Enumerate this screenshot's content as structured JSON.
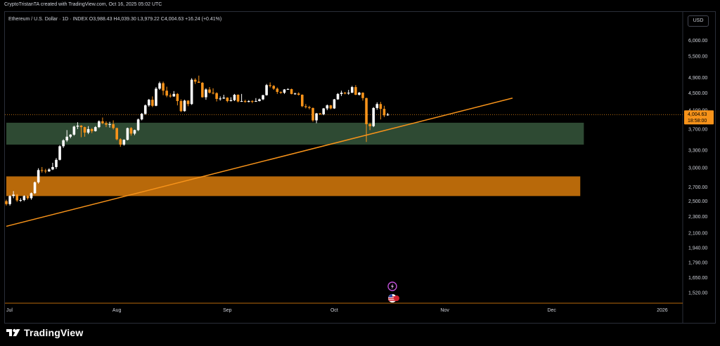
{
  "header": {
    "credit": "CryptoTristanTA created with TradingView.com, Oct 16, 2025 05:02 UTC"
  },
  "legend": {
    "symbol": "Ethereum / U.S. Dollar · 1D · INDEX",
    "open": "O3,988.43",
    "high": "H4,039.30",
    "low": "L3,979.22",
    "close": "C4,004.63",
    "change": "+16.24 (+0.41%)"
  },
  "currency_label": "USD",
  "price_badge": {
    "price": "4,004.63",
    "countdown": "18:58:00"
  },
  "footer": {
    "brand": "TradingView"
  },
  "colors": {
    "up": "#ffffff",
    "down": "#f7931a",
    "support_zone": "#2e4a33",
    "lower_zone": "#b8690a",
    "trendline": "#f7931a",
    "price_line": "#f7931a"
  },
  "icons": [
    "lightning-icon",
    "us-flag-icon",
    "tradingview-logo-icon"
  ],
  "chart_data": {
    "type": "candlestick",
    "y_scale": "log",
    "ylim": [
      1440,
      7000
    ],
    "y_ticks": [
      "6,000.00",
      "5,500.00",
      "4,900.00",
      "4,500.00",
      "4,100.00",
      "3,700.00",
      "3,300.00",
      "3,000.00",
      "2,700.00",
      "2,500.00",
      "2,300.00",
      "2,100.00",
      "1,940.00",
      "1,790.00",
      "1,650.00",
      "1,520.00"
    ],
    "x_ticks": [
      "Jul",
      "Aug",
      "Sep",
      "Oct",
      "Nov",
      "Dec",
      "2026"
    ],
    "x_range": [
      "2025-07-01",
      "2026-01-05"
    ],
    "last_price": 4004.63,
    "zones": [
      {
        "name": "support",
        "from": "2025-07-01",
        "to": "2025-12-10",
        "low": 3400,
        "high": 3830
      },
      {
        "name": "lower",
        "from": "2025-07-01",
        "to": "2025-12-09",
        "low": 2570,
        "high": 2860
      }
    ],
    "trendline": {
      "from": {
        "date": "2025-07-01",
        "price": 2180
      },
      "to": {
        "date": "2025-11-20",
        "price": 4380
      }
    },
    "candles": [
      {
        "date": "2025-07-01",
        "o": 2500,
        "h": 2520,
        "l": 2440,
        "c": 2460
      },
      {
        "date": "2025-07-02",
        "o": 2460,
        "h": 2580,
        "l": 2440,
        "c": 2570
      },
      {
        "date": "2025-07-03",
        "o": 2570,
        "h": 2640,
        "l": 2540,
        "c": 2590
      },
      {
        "date": "2025-07-04",
        "o": 2590,
        "h": 2600,
        "l": 2490,
        "c": 2510
      },
      {
        "date": "2025-07-05",
        "o": 2510,
        "h": 2540,
        "l": 2490,
        "c": 2515
      },
      {
        "date": "2025-07-06",
        "o": 2515,
        "h": 2580,
        "l": 2500,
        "c": 2570
      },
      {
        "date": "2025-07-07",
        "o": 2570,
        "h": 2580,
        "l": 2520,
        "c": 2540
      },
      {
        "date": "2025-07-08",
        "o": 2540,
        "h": 2620,
        "l": 2520,
        "c": 2610
      },
      {
        "date": "2025-07-09",
        "o": 2610,
        "h": 2780,
        "l": 2600,
        "c": 2770
      },
      {
        "date": "2025-07-10",
        "o": 2770,
        "h": 2990,
        "l": 2750,
        "c": 2960
      },
      {
        "date": "2025-07-11",
        "o": 2960,
        "h": 3010,
        "l": 2920,
        "c": 2950
      },
      {
        "date": "2025-07-12",
        "o": 2950,
        "h": 2980,
        "l": 2910,
        "c": 2940
      },
      {
        "date": "2025-07-13",
        "o": 2940,
        "h": 2990,
        "l": 2930,
        "c": 2970
      },
      {
        "date": "2025-07-14",
        "o": 2970,
        "h": 3080,
        "l": 2960,
        "c": 3010
      },
      {
        "date": "2025-07-15",
        "o": 3010,
        "h": 3160,
        "l": 2980,
        "c": 3130
      },
      {
        "date": "2025-07-16",
        "o": 3130,
        "h": 3390,
        "l": 3120,
        "c": 3370
      },
      {
        "date": "2025-07-17",
        "o": 3370,
        "h": 3500,
        "l": 3340,
        "c": 3480
      },
      {
        "date": "2025-07-18",
        "o": 3480,
        "h": 3680,
        "l": 3450,
        "c": 3550
      },
      {
        "date": "2025-07-19",
        "o": 3550,
        "h": 3600,
        "l": 3520,
        "c": 3590
      },
      {
        "date": "2025-07-20",
        "o": 3590,
        "h": 3770,
        "l": 3570,
        "c": 3750
      },
      {
        "date": "2025-07-21",
        "o": 3750,
        "h": 3840,
        "l": 3700,
        "c": 3770
      },
      {
        "date": "2025-07-22",
        "o": 3770,
        "h": 3780,
        "l": 3540,
        "c": 3740
      },
      {
        "date": "2025-07-23",
        "o": 3740,
        "h": 3750,
        "l": 3550,
        "c": 3630
      },
      {
        "date": "2025-07-24",
        "o": 3630,
        "h": 3760,
        "l": 3600,
        "c": 3700
      },
      {
        "date": "2025-07-25",
        "o": 3700,
        "h": 3720,
        "l": 3620,
        "c": 3660
      },
      {
        "date": "2025-07-26",
        "o": 3660,
        "h": 3760,
        "l": 3650,
        "c": 3740
      },
      {
        "date": "2025-07-27",
        "o": 3740,
        "h": 3880,
        "l": 3720,
        "c": 3860
      },
      {
        "date": "2025-07-28",
        "o": 3860,
        "h": 3940,
        "l": 3800,
        "c": 3820
      },
      {
        "date": "2025-07-29",
        "o": 3820,
        "h": 3860,
        "l": 3740,
        "c": 3790
      },
      {
        "date": "2025-07-30",
        "o": 3790,
        "h": 3850,
        "l": 3730,
        "c": 3800
      },
      {
        "date": "2025-07-31",
        "o": 3800,
        "h": 3880,
        "l": 3690,
        "c": 3720
      },
      {
        "date": "2025-08-01",
        "o": 3720,
        "h": 3730,
        "l": 3480,
        "c": 3500
      },
      {
        "date": "2025-08-02",
        "o": 3500,
        "h": 3520,
        "l": 3360,
        "c": 3400
      },
      {
        "date": "2025-08-03",
        "o": 3400,
        "h": 3500,
        "l": 3380,
        "c": 3490
      },
      {
        "date": "2025-08-04",
        "o": 3490,
        "h": 3730,
        "l": 3480,
        "c": 3720
      },
      {
        "date": "2025-08-05",
        "o": 3720,
        "h": 3740,
        "l": 3570,
        "c": 3610
      },
      {
        "date": "2025-08-06",
        "o": 3610,
        "h": 3690,
        "l": 3580,
        "c": 3680
      },
      {
        "date": "2025-08-07",
        "o": 3680,
        "h": 3920,
        "l": 3660,
        "c": 3900
      },
      {
        "date": "2025-08-08",
        "o": 3900,
        "h": 4040,
        "l": 3880,
        "c": 4020
      },
      {
        "date": "2025-08-09",
        "o": 4020,
        "h": 4230,
        "l": 4000,
        "c": 4210
      },
      {
        "date": "2025-08-10",
        "o": 4210,
        "h": 4360,
        "l": 4180,
        "c": 4340
      },
      {
        "date": "2025-08-11",
        "o": 4340,
        "h": 4420,
        "l": 4170,
        "c": 4200
      },
      {
        "date": "2025-08-12",
        "o": 4200,
        "h": 4650,
        "l": 4190,
        "c": 4610
      },
      {
        "date": "2025-08-13",
        "o": 4610,
        "h": 4790,
        "l": 4580,
        "c": 4750
      },
      {
        "date": "2025-08-14",
        "o": 4750,
        "h": 4790,
        "l": 4450,
        "c": 4560
      },
      {
        "date": "2025-08-15",
        "o": 4560,
        "h": 4660,
        "l": 4400,
        "c": 4440
      },
      {
        "date": "2025-08-16",
        "o": 4440,
        "h": 4490,
        "l": 4390,
        "c": 4420
      },
      {
        "date": "2025-08-17",
        "o": 4420,
        "h": 4550,
        "l": 4410,
        "c": 4480
      },
      {
        "date": "2025-08-18",
        "o": 4480,
        "h": 4500,
        "l": 4210,
        "c": 4310
      },
      {
        "date": "2025-08-19",
        "o": 4310,
        "h": 4350,
        "l": 4060,
        "c": 4080
      },
      {
        "date": "2025-08-20",
        "o": 4080,
        "h": 4340,
        "l": 4070,
        "c": 4320
      },
      {
        "date": "2025-08-21",
        "o": 4320,
        "h": 4330,
        "l": 4190,
        "c": 4240
      },
      {
        "date": "2025-08-22",
        "o": 4240,
        "h": 4880,
        "l": 4220,
        "c": 4840
      },
      {
        "date": "2025-08-23",
        "o": 4840,
        "h": 4880,
        "l": 4730,
        "c": 4790
      },
      {
        "date": "2025-08-24",
        "o": 4790,
        "h": 4950,
        "l": 4760,
        "c": 4760
      },
      {
        "date": "2025-08-25",
        "o": 4760,
        "h": 4780,
        "l": 4390,
        "c": 4400
      },
      {
        "date": "2025-08-26",
        "o": 4400,
        "h": 4620,
        "l": 4340,
        "c": 4590
      },
      {
        "date": "2025-08-27",
        "o": 4590,
        "h": 4650,
        "l": 4490,
        "c": 4510
      },
      {
        "date": "2025-08-28",
        "o": 4510,
        "h": 4620,
        "l": 4470,
        "c": 4500
      },
      {
        "date": "2025-08-29",
        "o": 4500,
        "h": 4520,
        "l": 4300,
        "c": 4360
      },
      {
        "date": "2025-08-30",
        "o": 4360,
        "h": 4420,
        "l": 4320,
        "c": 4370
      },
      {
        "date": "2025-08-31",
        "o": 4370,
        "h": 4460,
        "l": 4360,
        "c": 4390
      },
      {
        "date": "2025-09-01",
        "o": 4390,
        "h": 4400,
        "l": 4280,
        "c": 4310
      },
      {
        "date": "2025-09-02",
        "o": 4310,
        "h": 4400,
        "l": 4300,
        "c": 4330
      },
      {
        "date": "2025-09-03",
        "o": 4330,
        "h": 4480,
        "l": 4310,
        "c": 4460
      },
      {
        "date": "2025-09-04",
        "o": 4460,
        "h": 4470,
        "l": 4280,
        "c": 4300
      },
      {
        "date": "2025-09-05",
        "o": 4300,
        "h": 4480,
        "l": 4290,
        "c": 4310
      },
      {
        "date": "2025-09-06",
        "o": 4310,
        "h": 4340,
        "l": 4270,
        "c": 4290
      },
      {
        "date": "2025-09-07",
        "o": 4290,
        "h": 4330,
        "l": 4280,
        "c": 4310
      },
      {
        "date": "2025-09-08",
        "o": 4310,
        "h": 4330,
        "l": 4260,
        "c": 4300
      },
      {
        "date": "2025-09-09",
        "o": 4300,
        "h": 4380,
        "l": 4290,
        "c": 4310
      },
      {
        "date": "2025-09-10",
        "o": 4310,
        "h": 4370,
        "l": 4300,
        "c": 4350
      },
      {
        "date": "2025-09-11",
        "o": 4350,
        "h": 4460,
        "l": 4330,
        "c": 4450
      },
      {
        "date": "2025-09-12",
        "o": 4450,
        "h": 4730,
        "l": 4440,
        "c": 4700
      },
      {
        "date": "2025-09-13",
        "o": 4700,
        "h": 4770,
        "l": 4640,
        "c": 4680
      },
      {
        "date": "2025-09-14",
        "o": 4680,
        "h": 4700,
        "l": 4580,
        "c": 4610
      },
      {
        "date": "2025-09-15",
        "o": 4610,
        "h": 4640,
        "l": 4480,
        "c": 4530
      },
      {
        "date": "2025-09-16",
        "o": 4530,
        "h": 4540,
        "l": 4480,
        "c": 4510
      },
      {
        "date": "2025-09-17",
        "o": 4510,
        "h": 4600,
        "l": 4480,
        "c": 4590
      },
      {
        "date": "2025-09-18",
        "o": 4590,
        "h": 4620,
        "l": 4580,
        "c": 4600
      },
      {
        "date": "2025-09-19",
        "o": 4600,
        "h": 4610,
        "l": 4470,
        "c": 4480
      },
      {
        "date": "2025-09-20",
        "o": 4480,
        "h": 4510,
        "l": 4460,
        "c": 4490
      },
      {
        "date": "2025-09-21",
        "o": 4490,
        "h": 4520,
        "l": 4440,
        "c": 4460
      },
      {
        "date": "2025-09-22",
        "o": 4460,
        "h": 4470,
        "l": 4170,
        "c": 4190
      },
      {
        "date": "2025-09-23",
        "o": 4190,
        "h": 4240,
        "l": 4140,
        "c": 4170
      },
      {
        "date": "2025-09-24",
        "o": 4170,
        "h": 4200,
        "l": 4120,
        "c": 4150
      },
      {
        "date": "2025-09-25",
        "o": 4150,
        "h": 4160,
        "l": 3850,
        "c": 3880
      },
      {
        "date": "2025-09-26",
        "o": 3880,
        "h": 4040,
        "l": 3820,
        "c": 4030
      },
      {
        "date": "2025-09-27",
        "o": 4030,
        "h": 4040,
        "l": 4000,
        "c": 4010
      },
      {
        "date": "2025-09-28",
        "o": 4010,
        "h": 4150,
        "l": 3990,
        "c": 4140
      },
      {
        "date": "2025-09-29",
        "o": 4140,
        "h": 4230,
        "l": 4100,
        "c": 4210
      },
      {
        "date": "2025-09-30",
        "o": 4210,
        "h": 4220,
        "l": 4120,
        "c": 4140
      },
      {
        "date": "2025-10-01",
        "o": 4140,
        "h": 4360,
        "l": 4130,
        "c": 4350
      },
      {
        "date": "2025-10-02",
        "o": 4350,
        "h": 4500,
        "l": 4340,
        "c": 4480
      },
      {
        "date": "2025-10-03",
        "o": 4480,
        "h": 4560,
        "l": 4430,
        "c": 4510
      },
      {
        "date": "2025-10-04",
        "o": 4510,
        "h": 4530,
        "l": 4470,
        "c": 4490
      },
      {
        "date": "2025-10-05",
        "o": 4490,
        "h": 4580,
        "l": 4460,
        "c": 4510
      },
      {
        "date": "2025-10-06",
        "o": 4510,
        "h": 4680,
        "l": 4500,
        "c": 4650
      },
      {
        "date": "2025-10-07",
        "o": 4650,
        "h": 4700,
        "l": 4450,
        "c": 4460
      },
      {
        "date": "2025-10-08",
        "o": 4460,
        "h": 4530,
        "l": 4440,
        "c": 4510
      },
      {
        "date": "2025-10-09",
        "o": 4510,
        "h": 4520,
        "l": 4320,
        "c": 4380
      },
      {
        "date": "2025-10-10",
        "o": 4380,
        "h": 4390,
        "l": 3450,
        "c": 3800
      },
      {
        "date": "2025-10-11",
        "o": 3800,
        "h": 3830,
        "l": 3680,
        "c": 3760
      },
      {
        "date": "2025-10-12",
        "o": 3760,
        "h": 4170,
        "l": 3740,
        "c": 4150
      },
      {
        "date": "2025-10-13",
        "o": 4150,
        "h": 4280,
        "l": 4110,
        "c": 4240
      },
      {
        "date": "2025-10-14",
        "o": 4240,
        "h": 4290,
        "l": 3900,
        "c": 4130
      },
      {
        "date": "2025-10-15",
        "o": 4130,
        "h": 4200,
        "l": 3950,
        "c": 3988
      },
      {
        "date": "2025-10-16",
        "o": 3988.43,
        "h": 4039.3,
        "l": 3979.22,
        "c": 4004.63
      }
    ]
  }
}
